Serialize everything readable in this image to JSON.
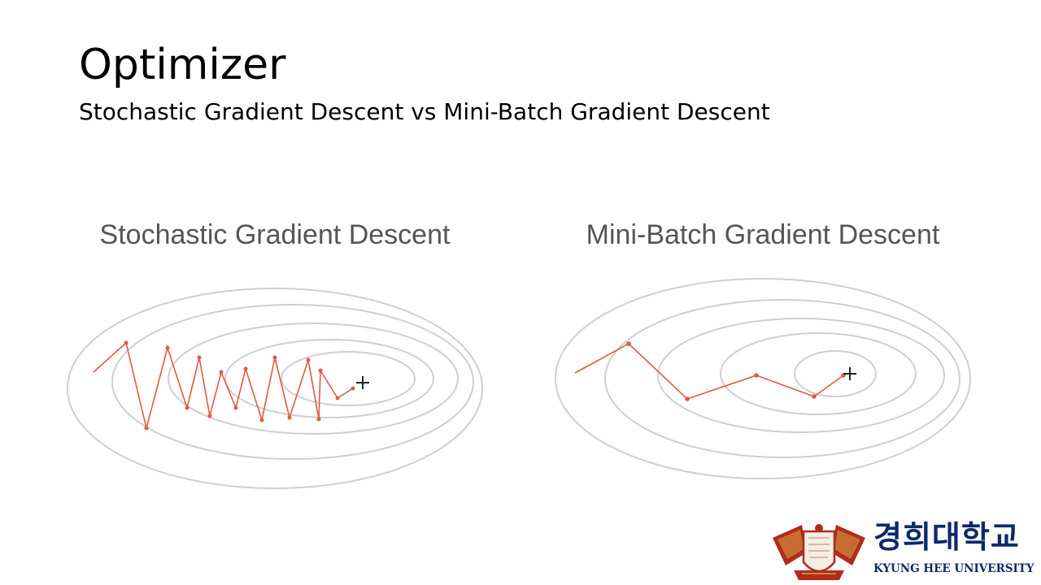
{
  "slide": {
    "title": "Optimizer",
    "subtitle": "Stochastic Gradient Descent vs Mini-Batch Gradient Descent"
  },
  "panels": [
    {
      "title": "Stochastic Gradient Descent",
      "minimum_marker": "+"
    },
    {
      "title": "Mini-Batch Gradient Descent",
      "minimum_marker": "+"
    }
  ],
  "logo": {
    "korean_name": "경희대학교",
    "english_name": "KYUNG HEE UNIVERSITY",
    "emblem": "kyung-hee-university-emblem"
  },
  "colors": {
    "path": "#e05a44",
    "contour": "#cfcfcf",
    "panel_title": "#555555",
    "logo_text": "#0b2a6b",
    "emblem": "#b22a1e"
  }
}
